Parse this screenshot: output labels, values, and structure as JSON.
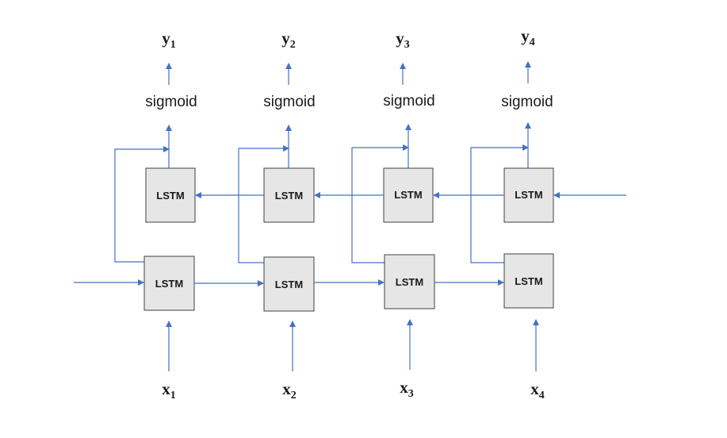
{
  "cell_label": "LSTM",
  "activation_label": "sigmoid",
  "colors": {
    "wire": "#4472c4",
    "cell_fill": "#e7e6e6",
    "cell_border": "#404040"
  },
  "outputs": [
    {
      "base": "y",
      "sub": "1"
    },
    {
      "base": "y",
      "sub": "2"
    },
    {
      "base": "y",
      "sub": "3"
    },
    {
      "base": "y",
      "sub": "4"
    }
  ],
  "inputs": [
    {
      "base": "x",
      "sub": "1"
    },
    {
      "base": "x",
      "sub": "2"
    },
    {
      "base": "x",
      "sub": "3"
    },
    {
      "base": "x",
      "sub": "4"
    }
  ]
}
